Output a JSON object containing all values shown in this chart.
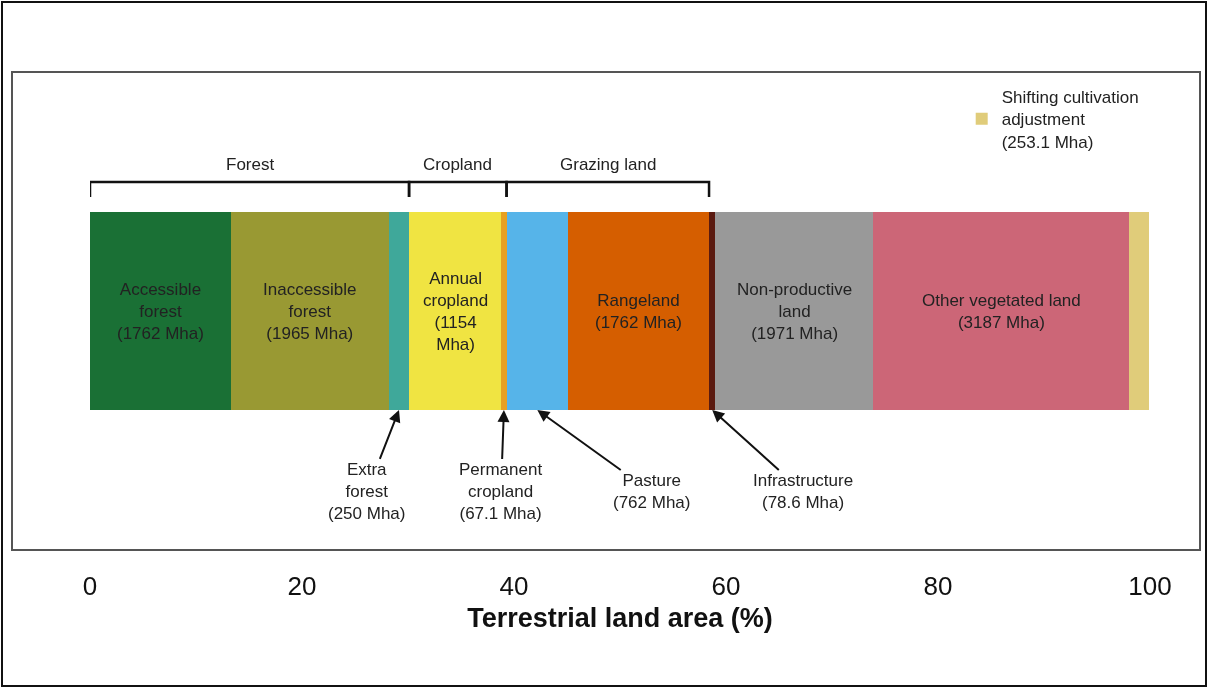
{
  "chart_data": {
    "type": "bar",
    "stacked": true,
    "orientation": "horizontal",
    "categories": [
      null
    ],
    "series": [
      {
        "name": "Accessible forest (1762 Mha)",
        "color": "#1a7035",
        "values": [
          13.3
        ]
      },
      {
        "name": "Inaccessible forest (1965 Mha)",
        "color": "#999933",
        "values": [
          14.9
        ]
      },
      {
        "name": "Extra forest (250 Mha)",
        "color": "#3fa89a",
        "values": [
          1.9
        ]
      },
      {
        "name": "Annual cropland (1154 Mha)",
        "color": "#f0e442",
        "values": [
          8.7
        ]
      },
      {
        "name": "Permanent cropland (67.1 Mha)",
        "color": "#e8a020",
        "values": [
          0.5
        ]
      },
      {
        "name": "Pasture (762 Mha)",
        "color": "#56b4e9",
        "values": [
          5.8
        ]
      },
      {
        "name": "Rangeland (1762 Mha)",
        "color": "#d55e00",
        "values": [
          13.3
        ]
      },
      {
        "name": "Infrastructure (78.6 Mha)",
        "color": "#5a1a10",
        "values": [
          0.6
        ]
      },
      {
        "name": "Non-productive land (1971 Mha)",
        "color": "#999999",
        "values": [
          14.9
        ]
      },
      {
        "name": "Other vegetated land (3187 Mha)",
        "color": "#cc6677",
        "values": [
          24.1
        ]
      },
      {
        "name": "Shifting cultivation adjustment (253.1 Mha)",
        "color": "#e0cc7a",
        "values": [
          1.9
        ]
      }
    ],
    "xlim": [
      0,
      100
    ],
    "xticks": [
      0,
      20,
      40,
      60,
      80,
      100
    ],
    "xlabel": "Terrestrial land area (%)",
    "annotations": [
      "Forest",
      "Cropland",
      "Grazing land"
    ],
    "legend": "top right",
    "grid": false,
    "tick_labels": "x"
  }
}
